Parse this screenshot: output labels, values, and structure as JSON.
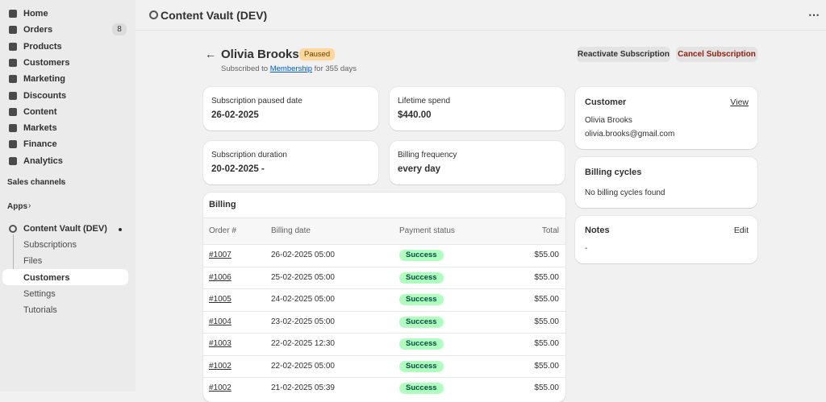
{
  "sidebar": {
    "nav": [
      {
        "label": "Home"
      },
      {
        "label": "Orders",
        "badge": "8"
      },
      {
        "label": "Products"
      },
      {
        "label": "Customers"
      },
      {
        "label": "Marketing"
      },
      {
        "label": "Discounts"
      },
      {
        "label": "Content"
      },
      {
        "label": "Markets"
      },
      {
        "label": "Finance"
      },
      {
        "label": "Analytics"
      }
    ],
    "sales_channels": "Sales channels",
    "apps": "Apps",
    "app_name": "Content Vault (DEV)",
    "app_nav": [
      "Subscriptions",
      "Files",
      "Customers",
      "Settings",
      "Tutorials"
    ]
  },
  "topbar": {
    "title": "Content Vault (DEV)"
  },
  "header": {
    "name": "Olivia Brooks",
    "status": "Paused",
    "subtitle_prefix": "Subscribed to",
    "subtitle_link": "Membership",
    "subtitle_suffix": "for 355 days",
    "actions": [
      "Reactivate Subscription",
      "Cancel Subscription"
    ]
  },
  "stats": [
    {
      "label": "Subscription paused date",
      "value": "26-02-2025"
    },
    {
      "label": "Lifetime spend",
      "value": "$440.00"
    },
    {
      "label": "Subscription duration",
      "value": "20-02-2025 -"
    },
    {
      "label": "Billing frequency",
      "value": "every day"
    }
  ],
  "billing": {
    "title": "Billing",
    "headers": [
      "Order #",
      "Billing date",
      "Payment status",
      "Total"
    ],
    "rows": [
      [
        "#1007",
        "26-02-2025 05:00",
        "Success",
        "$55.00"
      ],
      [
        "#1006",
        "25-02-2025 05:00",
        "Success",
        "$55.00"
      ],
      [
        "#1005",
        "24-02-2025 05:00",
        "Success",
        "$55.00"
      ],
      [
        "#1004",
        "23-02-2025 05:00",
        "Success",
        "$55.00"
      ],
      [
        "#1003",
        "22-02-2025 12:30",
        "Success",
        "$55.00"
      ],
      [
        "#1002",
        "22-02-2025 05:00",
        "Success",
        "$55.00"
      ],
      [
        "#1002",
        "21-02-2025 05:39",
        "Success",
        "$55.00"
      ]
    ]
  },
  "customer": {
    "title": "Customer",
    "link": "View",
    "name": "Olivia Brooks",
    "email": "olivia.brooks@gmail.com"
  },
  "billing_cycles": {
    "title": "Billing cycles",
    "text": "No billing cycles found"
  },
  "notes": {
    "title": "Notes",
    "link": "Edit",
    "text": "-"
  }
}
